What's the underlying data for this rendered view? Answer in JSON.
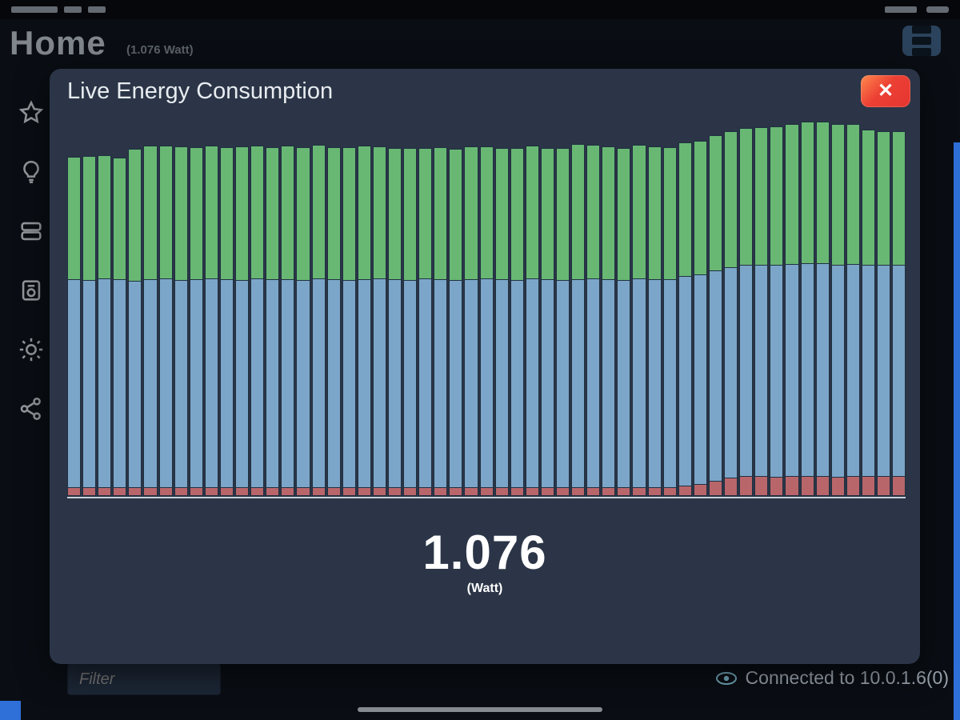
{
  "header": {
    "title": "Home",
    "subtitle": "(1.076 Watt)"
  },
  "sidebar": {
    "items": [
      {
        "icon": "star-icon"
      },
      {
        "icon": "lightbulb-icon"
      },
      {
        "icon": "trays-icon"
      },
      {
        "icon": "device-box-icon"
      },
      {
        "icon": "sun-icon"
      },
      {
        "icon": "share-icon"
      }
    ]
  },
  "modal": {
    "title": "Live Energy Consumption",
    "close_icon": "✕"
  },
  "reading": {
    "value": "1.076",
    "unit": "(Watt)"
  },
  "footer": {
    "filter_placeholder": "Filter",
    "connection_text": "Connected to 10.0.1.6(0)"
  },
  "colors": {
    "green": "#68b874",
    "blue": "#7ca6c9",
    "red": "#b9666b",
    "accent_blue": "#2e6fd8",
    "close_red": "#e53530"
  },
  "chart_data": {
    "type": "bar",
    "stacked": true,
    "title": "Live Energy Consumption",
    "xlabel": "",
    "ylabel": "",
    "legend": "none",
    "grid": false,
    "unit": "Watt",
    "total_reading": 1.076,
    "series": [
      {
        "name": "green",
        "color": "#68b874",
        "values": [
          154,
          156,
          155,
          153,
          166,
          168,
          167,
          168,
          166,
          167,
          166,
          168,
          167,
          166,
          168,
          167,
          168,
          166,
          167,
          168,
          166,
          165,
          166,
          164,
          166,
          165,
          167,
          166,
          165,
          166,
          167,
          165,
          166,
          170,
          168,
          167,
          166,
          168,
          167,
          166,
          168,
          168,
          170,
          171,
          172,
          173,
          174,
          176,
          178,
          178,
          177,
          176,
          170,
          168,
          168
        ]
      },
      {
        "name": "blue",
        "color": "#7ca6c9",
        "values": [
          260,
          259,
          261,
          260,
          258,
          260,
          261,
          259,
          260,
          261,
          260,
          259,
          261,
          260,
          260,
          259,
          261,
          260,
          259,
          260,
          261,
          260,
          259,
          261,
          260,
          259,
          260,
          261,
          260,
          259,
          261,
          260,
          259,
          260,
          261,
          260,
          259,
          261,
          260,
          260,
          262,
          262,
          263,
          263,
          264,
          264,
          265,
          265,
          266,
          266,
          265,
          265,
          264,
          264,
          264
        ]
      },
      {
        "name": "red",
        "color": "#b9666b",
        "values": [
          10,
          10,
          10,
          10,
          10,
          10,
          10,
          10,
          10,
          10,
          10,
          10,
          10,
          10,
          10,
          10,
          10,
          10,
          10,
          10,
          10,
          10,
          10,
          10,
          10,
          10,
          10,
          10,
          10,
          10,
          10,
          10,
          10,
          10,
          10,
          10,
          10,
          10,
          10,
          10,
          12,
          14,
          18,
          22,
          24,
          24,
          23,
          24,
          24,
          24,
          23,
          24,
          24,
          24,
          24
        ]
      }
    ]
  }
}
